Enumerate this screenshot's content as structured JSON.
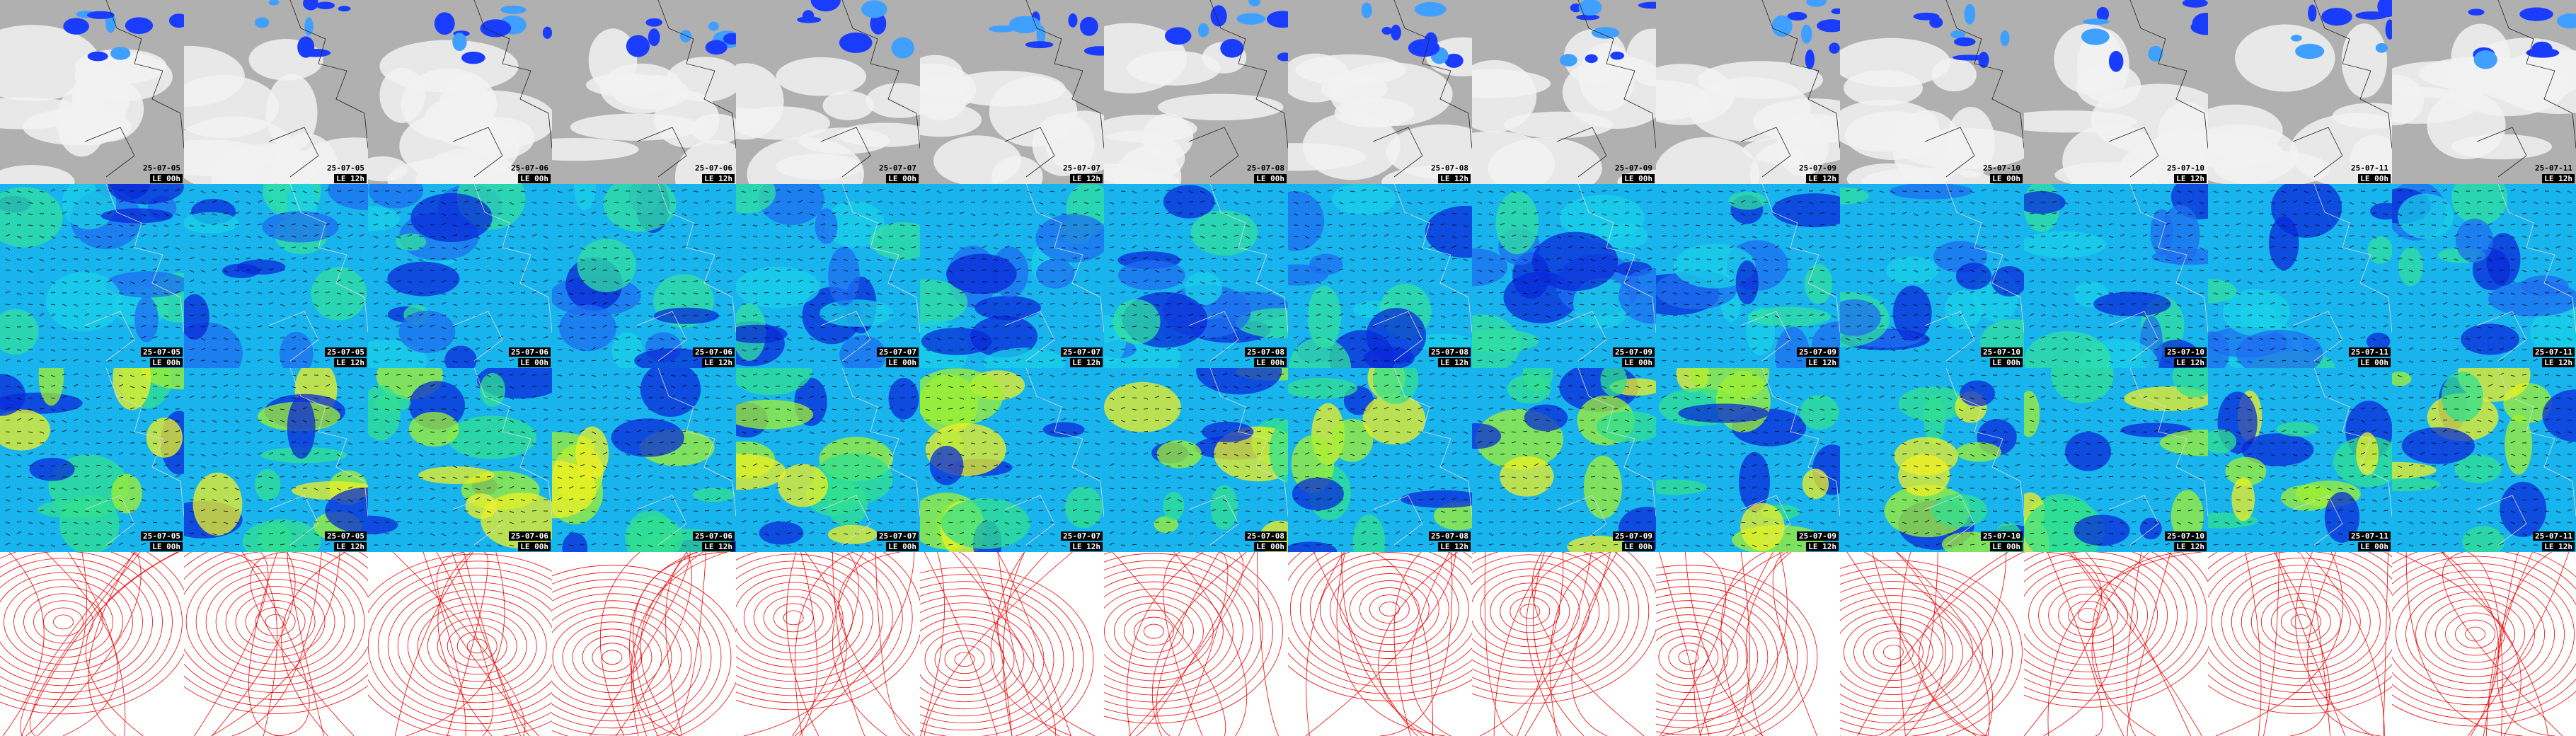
{
  "frames": [
    {
      "date": "25-07-05",
      "run": "LE 00h"
    },
    {
      "date": "25-07-05",
      "run": "LE 12h"
    },
    {
      "date": "25-07-06",
      "run": "LE 00h"
    },
    {
      "date": "25-07-06",
      "run": "LE 12h"
    },
    {
      "date": "25-07-07",
      "run": "LE 00h"
    },
    {
      "date": "25-07-07",
      "run": "LE 12h"
    },
    {
      "date": "25-07-08",
      "run": "LE 00h"
    },
    {
      "date": "25-07-08",
      "run": "LE 12h"
    },
    {
      "date": "25-07-09",
      "run": "LE 00h"
    },
    {
      "date": "25-07-09",
      "run": "LE 12h"
    },
    {
      "date": "25-07-10",
      "run": "LE 00h"
    },
    {
      "date": "25-07-10",
      "run": "LE 12h"
    },
    {
      "date": "25-07-11",
      "run": "LE 00h"
    },
    {
      "date": "25-07-11",
      "run": "LE 12h"
    }
  ]
}
